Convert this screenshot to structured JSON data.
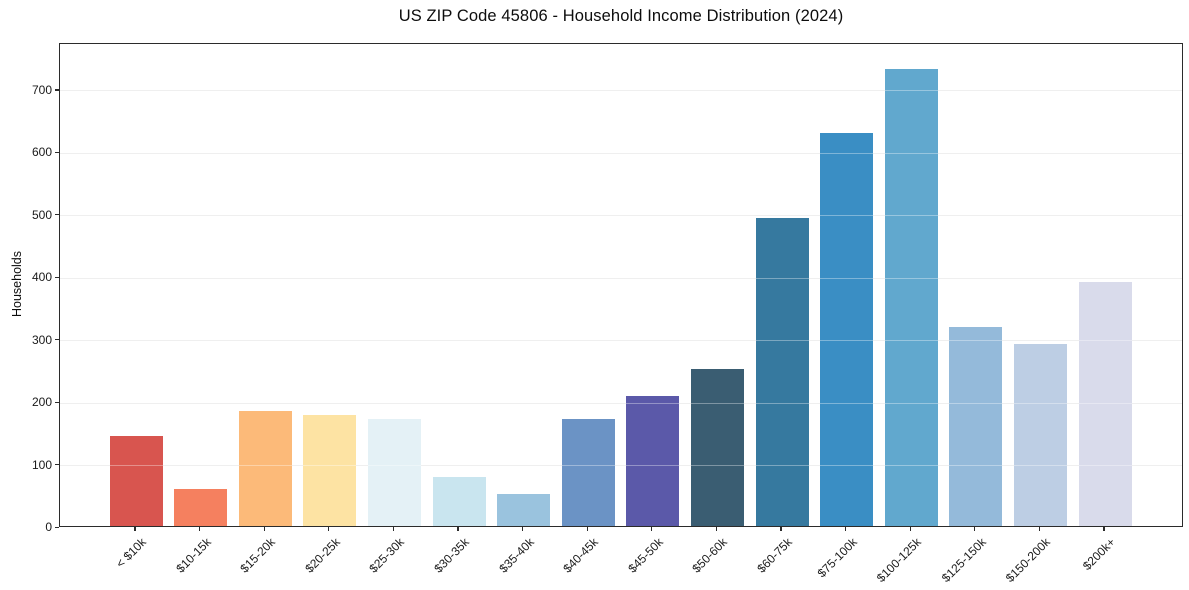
{
  "figure": {
    "title": "US ZIP Code 45806 - Household Income Distribution (2024)"
  },
  "chart_data": {
    "type": "bar",
    "title": "US ZIP Code 45806 - Household Income Distribution (2024)",
    "xlabel": "",
    "ylabel": "Households",
    "categories": [
      "< $10k",
      "$10-15k",
      "$15-20k",
      "$20-25k",
      "$25-30k",
      "$30-35k",
      "$35-40k",
      "$40-45k",
      "$45-50k",
      "$50-60k",
      "$60-75k",
      "$75-100k",
      "$100-125k",
      "$125-150k",
      "$150-200k",
      "$200k+"
    ],
    "values": [
      144,
      59,
      184,
      178,
      171,
      79,
      51,
      171,
      208,
      252,
      494,
      630,
      731,
      318,
      291,
      390
    ],
    "bar_colors": [
      "#d8554f",
      "#f5805f",
      "#fcba79",
      "#fde3a3",
      "#e4f1f6",
      "#c9e5ef",
      "#9ac3de",
      "#6b93c5",
      "#5b59a9",
      "#3a5d72",
      "#36799f",
      "#3a8ec4",
      "#61a8ce",
      "#94bada",
      "#bdcee4",
      "#d9dbeb"
    ],
    "ylim": [
      0,
      775
    ],
    "yticks": [
      0,
      100,
      200,
      300,
      400,
      500,
      600,
      700
    ],
    "grid": "horizontal",
    "legend": "none",
    "x_tick_rotation_deg": 45
  }
}
